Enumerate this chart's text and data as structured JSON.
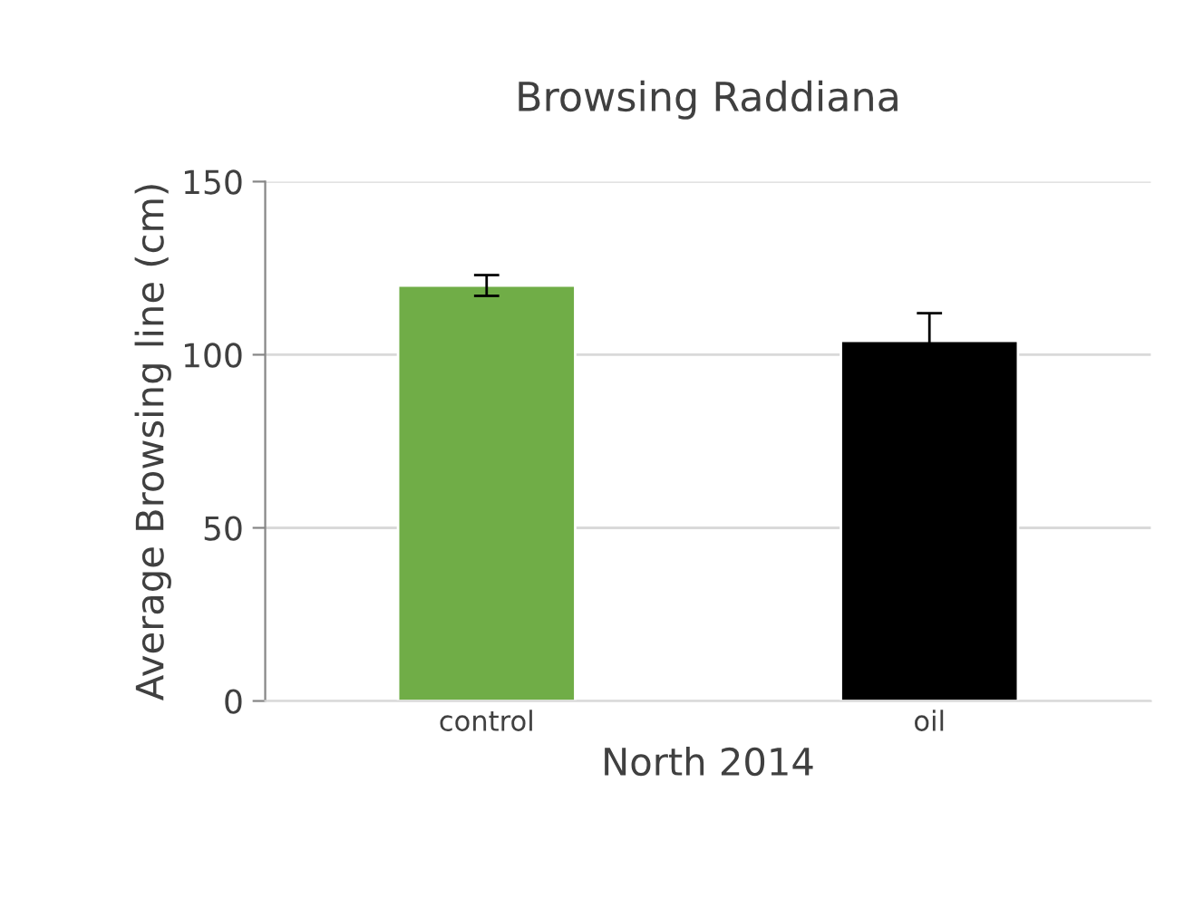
{
  "chart_data": {
    "type": "bar",
    "title": "Browsing Raddiana",
    "xlabel": "North 2014",
    "ylabel": "Average Browsing line (cm)",
    "categories": [
      "control",
      "oil"
    ],
    "values": [
      120,
      104
    ],
    "colors": [
      "#70ad47",
      "#000000"
    ],
    "errors": [
      3,
      8
    ],
    "ylim": [
      0,
      150
    ],
    "yticks": [
      0,
      50,
      100,
      150
    ],
    "grid": "y",
    "legend": false
  }
}
